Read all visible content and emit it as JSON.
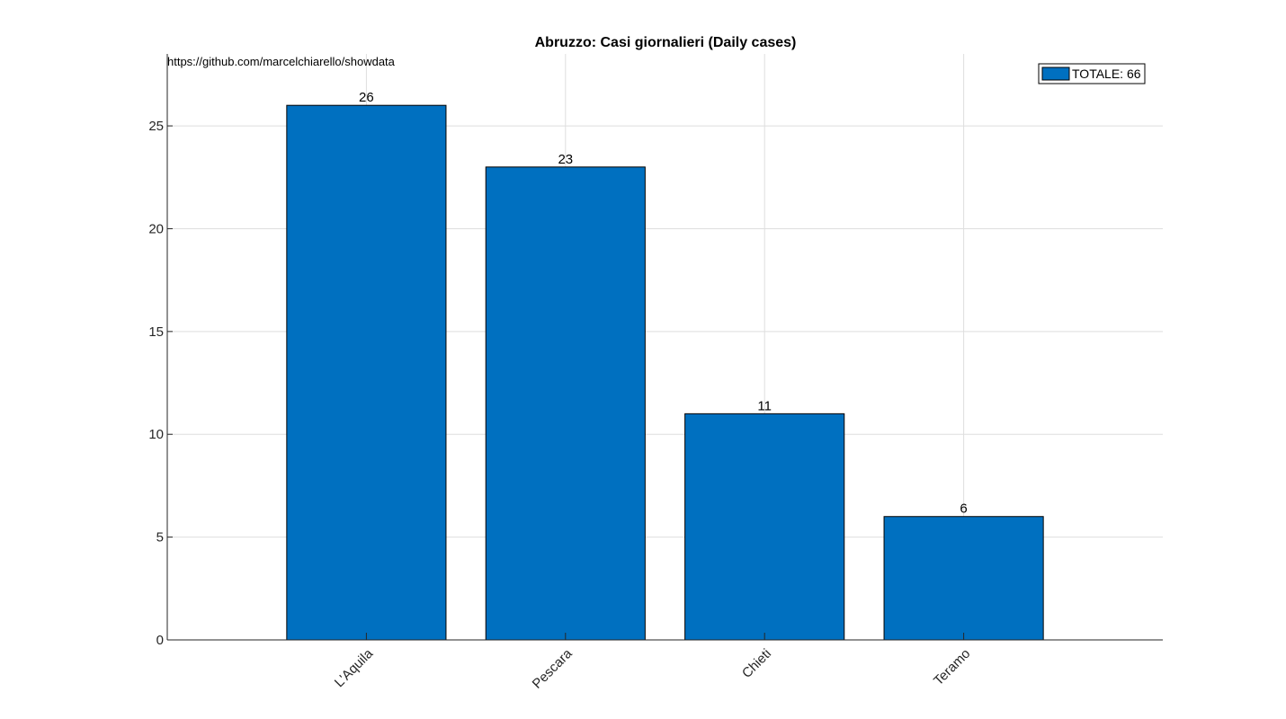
{
  "chart_data": {
    "type": "bar",
    "title": "Abruzzo: Casi giornalieri (Daily cases)",
    "annotation": "https://github.com/marcelchiarello/showdata",
    "categories": [
      "L'Aquila",
      "Pescara",
      "Chieti",
      "Teramo"
    ],
    "values": [
      26,
      23,
      11,
      6
    ],
    "data_labels": [
      "26",
      "23",
      "11",
      "6"
    ],
    "xlim": [
      0,
      5
    ],
    "ylim": [
      0,
      28.5
    ],
    "yticks": [
      0,
      5,
      10,
      15,
      20,
      25
    ],
    "ytick_labels": [
      "0",
      "5",
      "10",
      "15",
      "20",
      "25"
    ],
    "xlabel": "",
    "ylabel": "",
    "grid": true,
    "bar_color": "#0070C0",
    "legend": {
      "entries": [
        "TOTALE: 66"
      ],
      "placement": "top-right"
    }
  }
}
